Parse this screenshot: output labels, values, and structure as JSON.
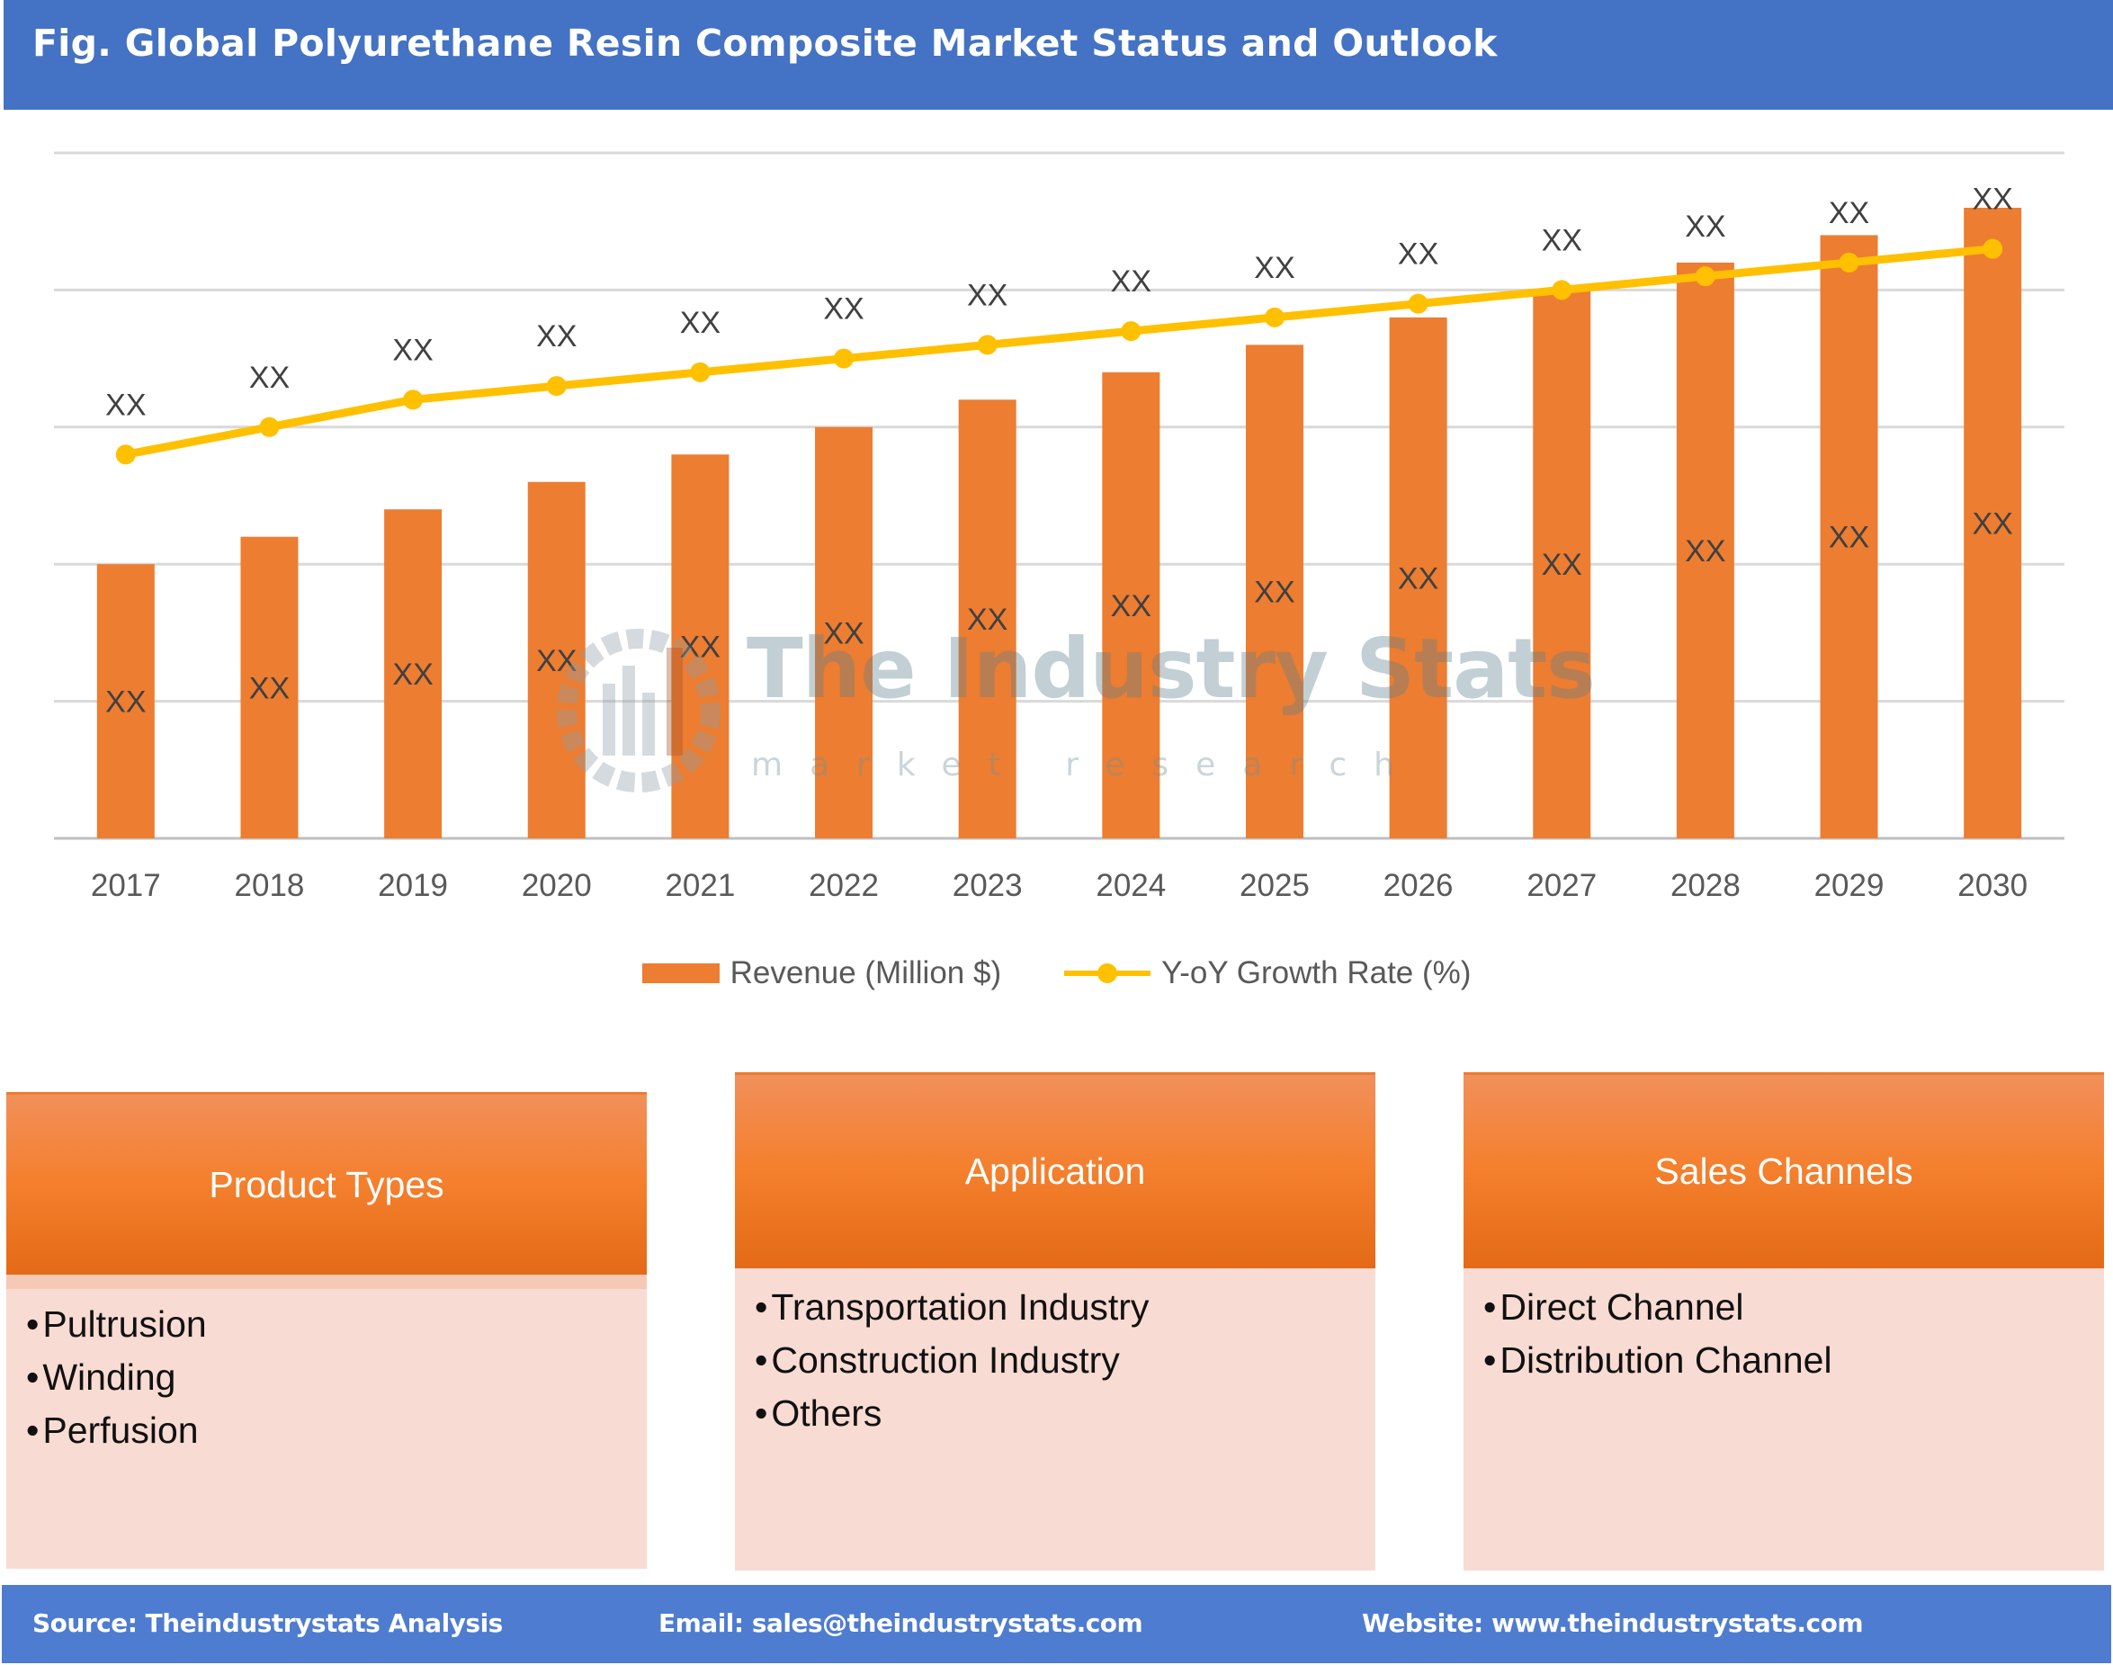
{
  "title": "Fig. Global Polyurethane Resin Composite Market Status and Outlook",
  "chart_data": {
    "type": "bar+line",
    "categories": [
      "2017",
      "2018",
      "2019",
      "2020",
      "2021",
      "2022",
      "2023",
      "2024",
      "2025",
      "2026",
      "2027",
      "2028",
      "2029",
      "2030"
    ],
    "series": [
      {
        "name": "Revenue (Million $)",
        "type": "bar",
        "color": "#ED7D31",
        "values": [
          2.0,
          2.2,
          2.4,
          2.6,
          2.8,
          3.0,
          3.2,
          3.4,
          3.6,
          3.8,
          4.0,
          4.2,
          4.4,
          4.6
        ],
        "data_labels": [
          "XX",
          "XX",
          "XX",
          "XX",
          "XX",
          "XX",
          "XX",
          "XX",
          "XX",
          "XX",
          "XX",
          "XX",
          "XX",
          "XX"
        ]
      },
      {
        "name": "Y-oY Growth Rate (%)",
        "type": "line",
        "color": "#FFC000",
        "values": [
          2.8,
          3.0,
          3.2,
          3.3,
          3.4,
          3.5,
          3.6,
          3.7,
          3.8,
          3.9,
          4.0,
          4.1,
          4.2,
          4.3
        ],
        "data_labels": [
          "XX",
          "XX",
          "XX",
          "XX",
          "XX",
          "XX",
          "XX",
          "XX",
          "XX",
          "XX",
          "XX",
          "XX",
          "XX",
          "XX"
        ]
      }
    ],
    "ylim": [
      0,
      5
    ],
    "y_tick_labels_shown": false,
    "grid": true,
    "legend": "bottom"
  },
  "legend": {
    "revenue": "Revenue (Million $)",
    "growth": "Y-oY Growth Rate (%)"
  },
  "watermark": {
    "name": "The Industry Stats",
    "tagline": "market research"
  },
  "boxes": [
    {
      "title": "Product Types",
      "items": [
        "Pultrusion",
        "Winding",
        "Perfusion"
      ]
    },
    {
      "title": "Application",
      "items": [
        "Transportation Industry",
        "Construction Industry",
        "Others"
      ]
    },
    {
      "title": "Sales Channels",
      "items": [
        "Direct Channel",
        "Distribution Channel"
      ]
    }
  ],
  "footer": {
    "source": "Source: Theindustrystats Analysis",
    "email": "Email: sales@theindustrystats.com",
    "website": "Website: www.theindustrystats.com"
  }
}
